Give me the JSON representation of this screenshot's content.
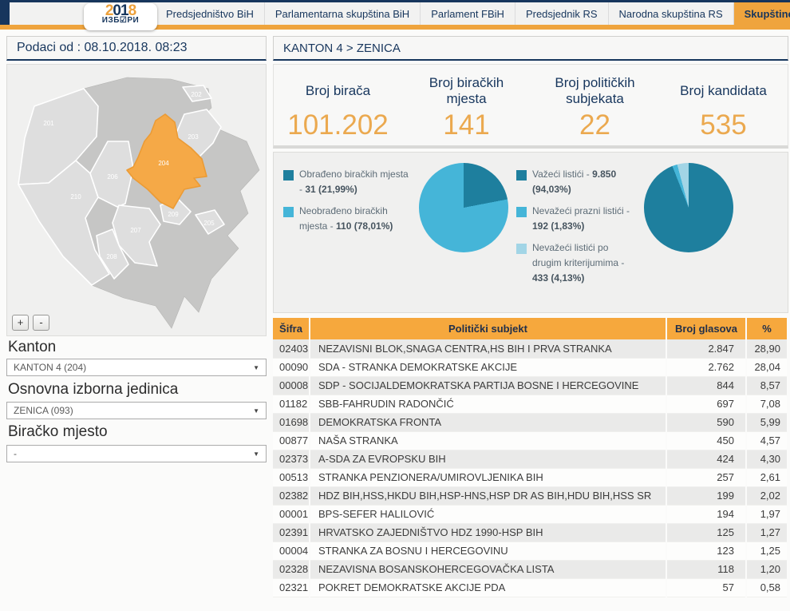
{
  "nav": {
    "logo": {
      "year_parts": [
        "2",
        "01",
        "8"
      ],
      "word": "ИЗБ☑РИ"
    },
    "tabs": [
      {
        "label": "Predsjedništvo BiH",
        "active": false
      },
      {
        "label": "Parlamentarna skupština BiH",
        "active": false
      },
      {
        "label": "Parlament FBiH",
        "active": false
      },
      {
        "label": "Predsjednik RS",
        "active": false
      },
      {
        "label": "Narodna skupština RS",
        "active": false
      },
      {
        "label": "Skupštine kantona u FBiH",
        "active": true
      }
    ],
    "accent_orange": "#efa43d",
    "accent_navy": "#17365d"
  },
  "left": {
    "data_timestamp": "Podaci od : 08.10.2018. 08:23",
    "map": {
      "highlighted_region": "204",
      "highlight_color": "#f5a947",
      "region_labels": [
        "201",
        "202",
        "203",
        "204",
        "205",
        "206",
        "207",
        "208",
        "209",
        "210"
      ],
      "zoom_in": "+",
      "zoom_out": "-"
    },
    "filters": [
      {
        "label": "Kanton",
        "value": "KANTON 4 (204)"
      },
      {
        "label": "Osnovna izborna jedinica",
        "value": "ZENICA (093)"
      },
      {
        "label": "Biračko mjesto",
        "value": "-"
      }
    ]
  },
  "right": {
    "breadcrumb": "KANTON 4 > ZENICA",
    "stats": [
      {
        "label": "Broj birača",
        "value": "101.202"
      },
      {
        "label": "Broj biračkih mjesta",
        "value": "141"
      },
      {
        "label": "Broj političkih subjekata",
        "value": "22"
      },
      {
        "label": "Broj kandidata",
        "value": "535"
      }
    ]
  },
  "chart_data": [
    {
      "type": "pie",
      "legend_position": "left",
      "slices": [
        {
          "legend_label": "Obrađeno biračkih mjesta - ",
          "legend_value": "31 (21,99%)",
          "value": 31,
          "pct": 21.99,
          "color": "#1e7f9e"
        },
        {
          "legend_label": "Neobrađeno biračkih mjesta - ",
          "legend_value": "110 (78,01%)",
          "value": 110,
          "pct": 78.01,
          "color": "#45b5d8"
        }
      ]
    },
    {
      "type": "pie",
      "legend_position": "left",
      "slices": [
        {
          "legend_label": "Važeći listići - ",
          "legend_value": "9.850 (94,03%)",
          "value": 9850,
          "pct": 94.03,
          "color": "#1e7f9e"
        },
        {
          "legend_label": "Nevažeći prazni listići - ",
          "legend_value": "192 (1,83%)",
          "value": 192,
          "pct": 1.83,
          "color": "#45b5d8"
        },
        {
          "legend_label": "Nevažeći listići po drugim kriterijumima - ",
          "legend_value": "433 (4,13%)",
          "value": 433,
          "pct": 4.13,
          "color": "#a2d5e6"
        }
      ]
    }
  ],
  "table": {
    "headers": [
      "Šifra",
      "Politički subjekt",
      "Broj glasova",
      "%"
    ],
    "rows": [
      [
        "02403",
        "NEZAVISNI BLOK,SNAGA CENTRA,HS BIH I PRVA STRANKA",
        "2.847",
        "28,90"
      ],
      [
        "00090",
        "SDA - STRANKA DEMOKRATSKE AKCIJE",
        "2.762",
        "28,04"
      ],
      [
        "00008",
        "SDP - SOCIJALDEMOKRATSKA PARTIJA BOSNE I HERCEGOVINE",
        "844",
        "8,57"
      ],
      [
        "01182",
        "SBB-FAHRUDIN RADONČIĆ",
        "697",
        "7,08"
      ],
      [
        "01698",
        "DEMOKRATSKA FRONTA",
        "590",
        "5,99"
      ],
      [
        "00877",
        "NAŠA STRANKA",
        "450",
        "4,57"
      ],
      [
        "02373",
        "A-SDA ZA EVROPSKU BIH",
        "424",
        "4,30"
      ],
      [
        "00513",
        "STRANKA PENZIONERA/UMIROVLJENIKA BIH",
        "257",
        "2,61"
      ],
      [
        "02382",
        "HDZ BIH,HSS,HKDU BIH,HSP-HNS,HSP DR AS BIH,HDU BIH,HSS SR",
        "199",
        "2,02"
      ],
      [
        "00001",
        "BPS-SEFER HALILOVIĆ",
        "194",
        "1,97"
      ],
      [
        "02391",
        "HRVATSKO ZAJEDNIŠTVO HDZ 1990-HSP BIH",
        "125",
        "1,27"
      ],
      [
        "00004",
        "STRANKA ZA BOSNU I HERCEGOVINU",
        "123",
        "1,25"
      ],
      [
        "02328",
        "NEZAVISNA BOSANSKOHERCEGOVAČKA LISTA",
        "118",
        "1,20"
      ],
      [
        "02321",
        "POKRET DEMOKRATSKE AKCIJE PDA",
        "57",
        "0,58"
      ]
    ]
  }
}
